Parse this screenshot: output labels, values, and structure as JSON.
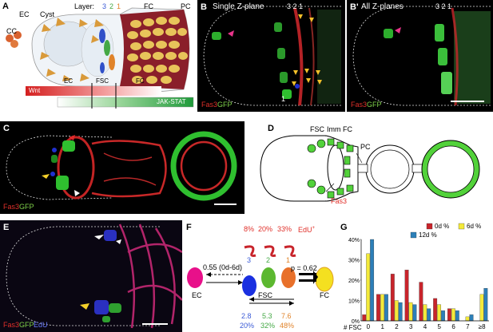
{
  "panelA": {
    "letter": "A",
    "labels": {
      "cc": "CC",
      "ec": "EC",
      "cyst": "Cyst",
      "layer": "Layer:",
      "l3": "3",
      "l2": "2",
      "l1": "1",
      "fc": "FC",
      "pc": "PC"
    },
    "gradient": {
      "wnt": "Wnt",
      "ec": "EC",
      "fsc": "FSC",
      "fc": "FC",
      "jak": "JAK-STAT"
    }
  },
  "panelB": {
    "letter": "B",
    "title": "Single Z-plane",
    "layers": "3 2 1",
    "mark": "1",
    "fas3": "Fas3",
    "gfp": "GFP"
  },
  "panelB2": {
    "letter": "B'",
    "title": "All Z-planes",
    "layers": "3 2 1",
    "fas3": "Fas3",
    "gfp": "GFP"
  },
  "panelC": {
    "letter": "C",
    "fas3": "Fas3",
    "gfp": "GFP"
  },
  "panelD": {
    "letter": "D",
    "fsc": "FSC",
    "immfc": "Imm FC",
    "pc": "PC",
    "fas3": "Fas3"
  },
  "panelE": {
    "letter": "E",
    "fas3": "Fas3",
    "gfp": "GFP",
    "edu": "EdU"
  },
  "panelF": {
    "letter": "F",
    "edu_pct": [
      "8%",
      "20%",
      "33%"
    ],
    "edu_label": "EdU",
    "edu_sup": "+",
    "layers": [
      "3",
      "2",
      "1"
    ],
    "arrow_left": "0.55 (0d-6d)",
    "p_label": "p = 0.62",
    "ec": "EC",
    "fsc": "FSC",
    "fc": "FC",
    "counts": [
      "2.8",
      "5.3",
      "7.6"
    ],
    "pcts": [
      "20%",
      "32%",
      "48%"
    ]
  },
  "panelG": {
    "letter": "G"
  },
  "chart_data": {
    "type": "bar",
    "title": "",
    "xlabel": "# FSC",
    "ylabel": "",
    "categories": [
      "0",
      "1",
      "2",
      "3",
      "4",
      "5",
      "6",
      "7",
      "≥8"
    ],
    "ylim": [
      0,
      40
    ],
    "yticks": [
      "0%",
      "10%",
      "20%",
      "30%",
      "40%"
    ],
    "legend_position": "top-right",
    "series": [
      {
        "name": "0d %",
        "color": "#c8242b",
        "values": [
          3,
          13,
          23,
          25,
          19,
          11,
          6,
          0,
          0
        ]
      },
      {
        "name": "6d %",
        "color": "#f4ea3a",
        "values": [
          33,
          13,
          10,
          9,
          8,
          8,
          6,
          2,
          13
        ]
      },
      {
        "name": "12d %",
        "color": "#2c7fb8",
        "values": [
          40,
          13,
          9,
          8,
          6,
          5,
          5,
          3,
          16
        ]
      }
    ]
  }
}
